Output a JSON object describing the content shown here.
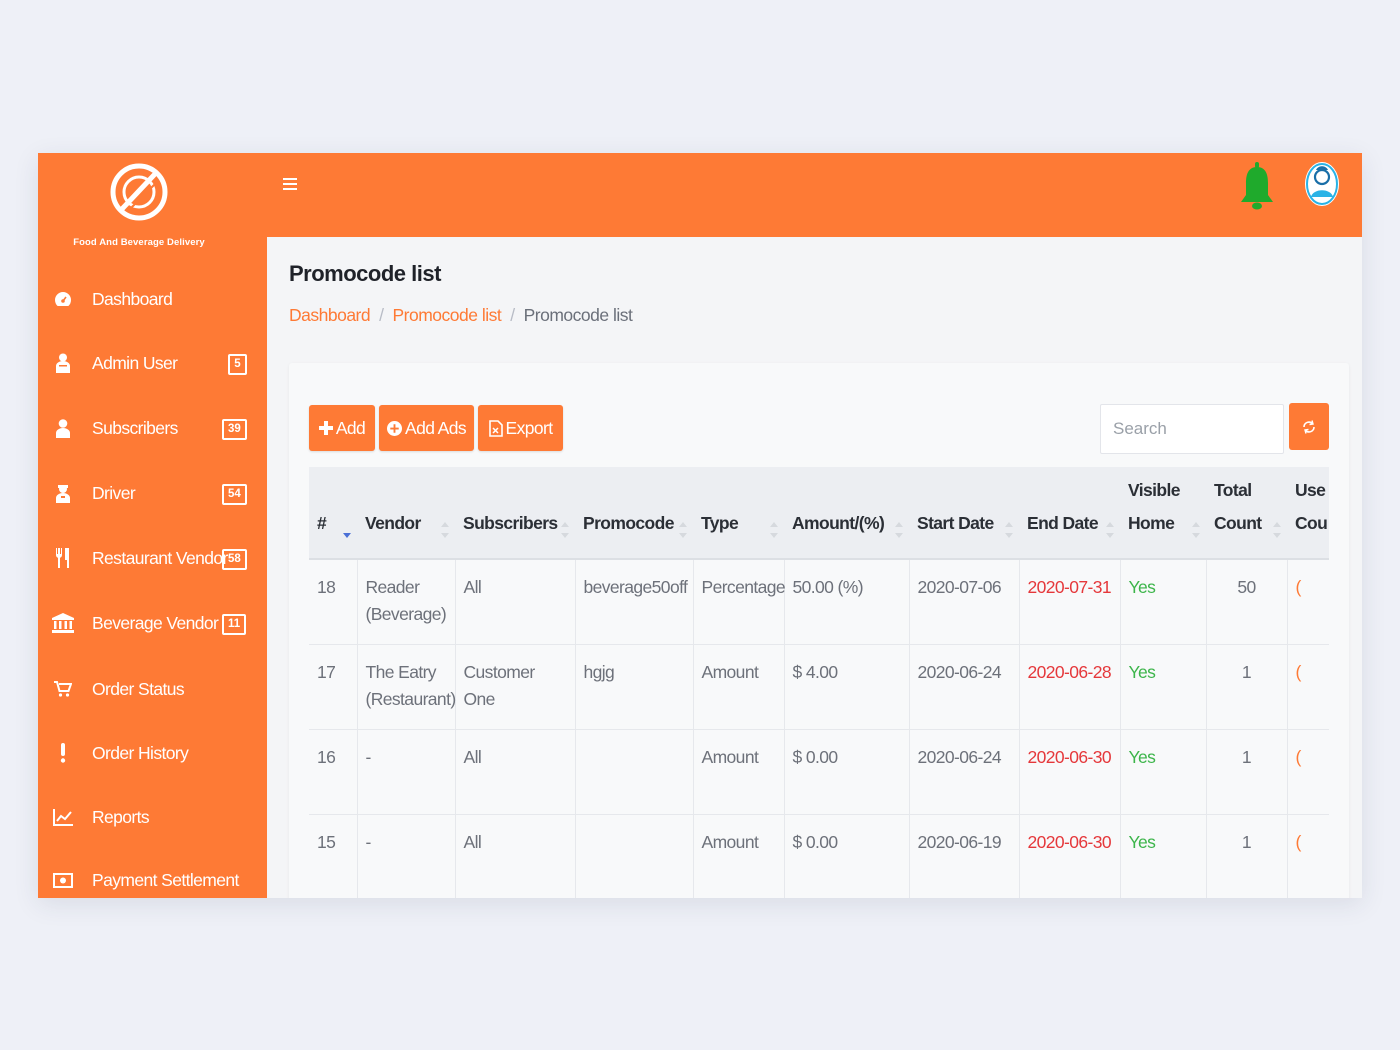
{
  "brand": {
    "name": "Food And Beverage Delivery"
  },
  "sidebar": {
    "items": [
      {
        "label": "Dashboard",
        "icon": "dashboard-icon",
        "badge": ""
      },
      {
        "label": "Admin User",
        "icon": "user-icon",
        "badge": "5"
      },
      {
        "label": "Subscribers",
        "icon": "person-icon",
        "badge": "39"
      },
      {
        "label": "Driver",
        "icon": "driver-icon",
        "badge": "54"
      },
      {
        "label": "Restaurant Vendor",
        "icon": "cutlery-icon",
        "badge": "58"
      },
      {
        "label": "Beverage Vendor",
        "icon": "bank-icon",
        "badge": "11"
      },
      {
        "label": "Order Status",
        "icon": "cart-icon",
        "badge": ""
      },
      {
        "label": "Order History",
        "icon": "exclamation-icon",
        "badge": ""
      },
      {
        "label": "Reports",
        "icon": "chart-icon",
        "badge": ""
      },
      {
        "label": "Payment Settlement",
        "icon": "money-icon",
        "badge": ""
      }
    ]
  },
  "header": {
    "menu_icon": "hamburger-icon",
    "notification_icon": "bell-icon",
    "avatar_icon": "avatar-icon"
  },
  "page": {
    "title": "Promocode list",
    "breadcrumb": [
      "Dashboard",
      "Promocode list",
      "Promocode list"
    ]
  },
  "toolbar": {
    "add_label": "Add",
    "add_ads_label": "Add Ads",
    "export_label": "Export",
    "search_placeholder": "Search"
  },
  "table": {
    "columns": [
      {
        "line1": "",
        "line2": "#"
      },
      {
        "line1": "",
        "line2": "Vendor"
      },
      {
        "line1": "",
        "line2": "Subscribers"
      },
      {
        "line1": "",
        "line2": "Promocode"
      },
      {
        "line1": "",
        "line2": "Type"
      },
      {
        "line1": "",
        "line2": "Amount/(%)"
      },
      {
        "line1": "",
        "line2": "Start Date"
      },
      {
        "line1": "",
        "line2": "End Date"
      },
      {
        "line1": "Visible",
        "line2": "Home"
      },
      {
        "line1": "Total",
        "line2": "Count"
      },
      {
        "line1": "Use",
        "line2": "Cou"
      }
    ],
    "rows": [
      {
        "id": "18",
        "vendor_line1": "Reader",
        "vendor_line2": "(Beverage)",
        "subscribers": "All",
        "promocode": "beverage50off",
        "type": "Percentage",
        "amount": "50.00 (%)",
        "start_date": "2020-07-06",
        "end_date": "2020-07-31",
        "visible_home": "Yes",
        "total_count": "50",
        "use_count": "("
      },
      {
        "id": "17",
        "vendor_line1": "The Eatry",
        "vendor_line2": "(Restaurant)",
        "subscribers": "Customer One",
        "promocode": "hgjg",
        "type": "Amount",
        "amount": "$ 4.00",
        "start_date": "2020-06-24",
        "end_date": "2020-06-28",
        "visible_home": "Yes",
        "total_count": "1",
        "use_count": "("
      },
      {
        "id": "16",
        "vendor_line1": "-",
        "vendor_line2": "",
        "subscribers": "All",
        "promocode": "",
        "type": "Amount",
        "amount": "$ 0.00",
        "start_date": "2020-06-24",
        "end_date": "2020-06-30",
        "visible_home": "Yes",
        "total_count": "1",
        "use_count": "("
      },
      {
        "id": "15",
        "vendor_line1": "-",
        "vendor_line2": "",
        "subscribers": "All",
        "promocode": "",
        "type": "Amount",
        "amount": "$ 0.00",
        "start_date": "2020-06-19",
        "end_date": "2020-06-30",
        "visible_home": "Yes",
        "total_count": "1",
        "use_count": "("
      }
    ]
  },
  "colors": {
    "brand": "#fe7a35",
    "bell": "#1faa2c",
    "end_date": "#e5383b",
    "visible_yes": "#3cb54a"
  }
}
